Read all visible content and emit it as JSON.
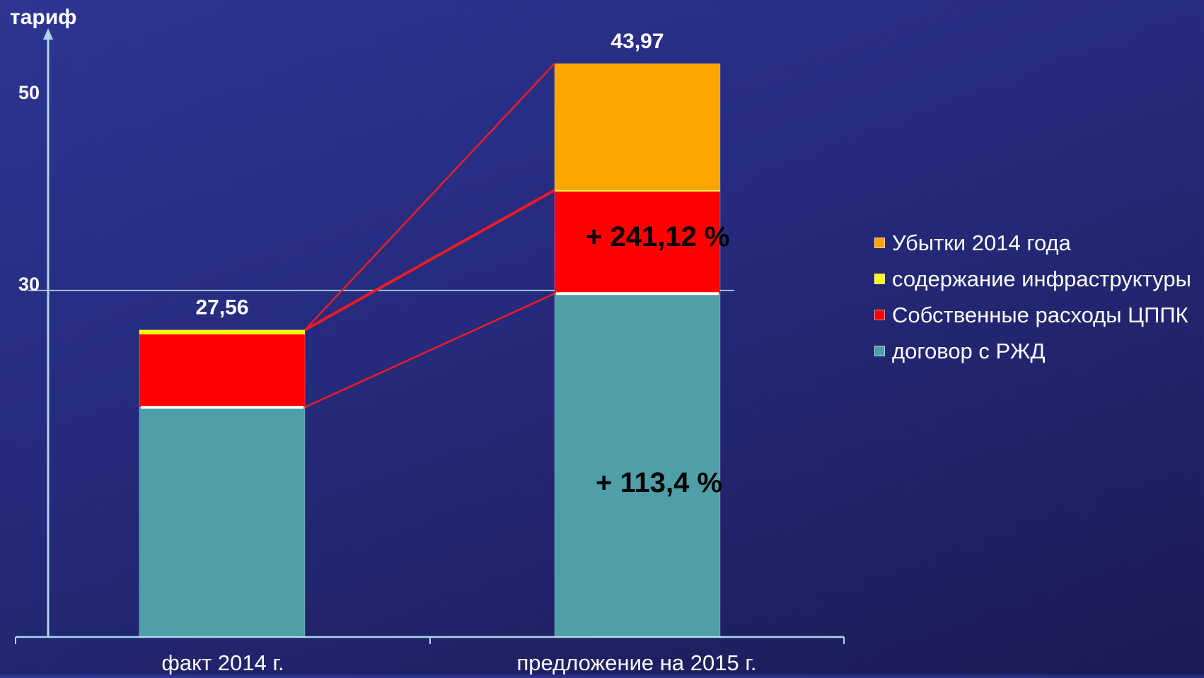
{
  "chart_data": {
    "type": "bar",
    "stacked": true,
    "ylabel": "тариф",
    "yticks": [
      30,
      50
    ],
    "categories": [
      "факт 2014 г.",
      "предложение на 2015 г."
    ],
    "series": [
      {
        "name": "договор с РЖД",
        "color": "#4e9fa8",
        "values": [
          22.8,
          29.8
        ]
      },
      {
        "name": "Собственные расходы ЦППК",
        "color": "#ff0000",
        "values": [
          4.5,
          6.3
        ]
      },
      {
        "name": "содержание инфраструктуры",
        "color": "#ffff00",
        "values": [
          0.26,
          0.07
        ]
      },
      {
        "name": "Убытки 2014 года",
        "color": "#ffa500",
        "values": [
          0,
          7.8
        ]
      }
    ],
    "totals": [
      "27,56",
      "43,97"
    ],
    "annotations": [
      "+ 241,12 %",
      "+ 113,4 %"
    ],
    "legend_order": [
      "Убытки 2014 года",
      "содержание инфраструктуры",
      "Собственные расходы ЦППК",
      "договор с РЖД"
    ],
    "legend_position": "right",
    "grid": "horizontal at 30 and 50"
  }
}
